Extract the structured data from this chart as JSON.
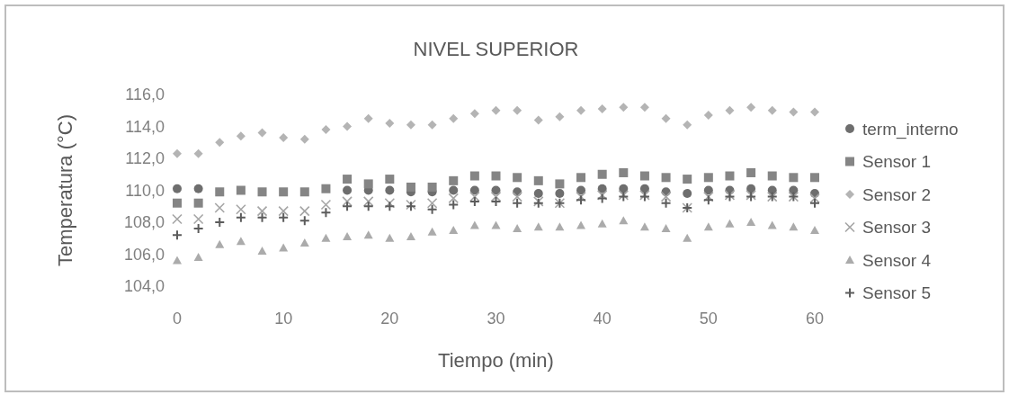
{
  "chart_data": {
    "type": "scatter",
    "title": "NIVEL SUPERIOR",
    "xlabel": "Tiempo (min)",
    "ylabel": "Temperatura (°C)",
    "x": [
      0,
      2,
      4,
      6,
      8,
      10,
      12,
      14,
      16,
      18,
      20,
      22,
      24,
      26,
      28,
      30,
      32,
      34,
      36,
      38,
      40,
      42,
      44,
      46,
      48,
      50,
      52,
      54,
      56,
      58,
      60
    ],
    "xlim": [
      0,
      60
    ],
    "xticks": [
      0,
      10,
      20,
      30,
      40,
      50,
      60
    ],
    "ylim": [
      104,
      116
    ],
    "yticks": [
      {
        "value": 104,
        "label": "104,0"
      },
      {
        "value": 106,
        "label": "106,0"
      },
      {
        "value": 108,
        "label": "108,0"
      },
      {
        "value": 110,
        "label": "110,0"
      },
      {
        "value": 112,
        "label": "112,0"
      },
      {
        "value": 114,
        "label": "114,0"
      },
      {
        "value": 116,
        "label": "116,0"
      }
    ],
    "grid": false,
    "legend": "right",
    "series": [
      {
        "name": "term_interno",
        "color": "#6e6e6e",
        "marker": "circle",
        "values": [
          110.1,
          110.1,
          null,
          null,
          null,
          null,
          null,
          null,
          110.0,
          110.0,
          110.0,
          109.9,
          109.9,
          110.0,
          110.0,
          110.0,
          109.9,
          109.8,
          109.8,
          110.0,
          110.1,
          110.1,
          110.1,
          109.9,
          109.8,
          110.0,
          110.0,
          110.1,
          110.0,
          110.0,
          109.8
        ]
      },
      {
        "name": "Sensor 1",
        "color": "#858585",
        "marker": "square",
        "values": [
          109.2,
          109.2,
          109.9,
          110.0,
          109.9,
          109.9,
          109.9,
          110.1,
          110.7,
          110.4,
          110.7,
          110.2,
          110.2,
          110.6,
          110.9,
          110.9,
          110.8,
          110.6,
          110.4,
          110.8,
          111.0,
          111.1,
          110.9,
          110.8,
          110.7,
          110.8,
          110.9,
          111.1,
          110.9,
          110.8,
          110.8
        ]
      },
      {
        "name": "Sensor 2",
        "color": "#b4b4b4",
        "marker": "diamond",
        "values": [
          112.3,
          112.3,
          113.0,
          113.4,
          113.6,
          113.3,
          113.2,
          113.8,
          114.0,
          114.5,
          114.2,
          114.1,
          114.1,
          114.5,
          114.8,
          115.0,
          115.0,
          114.4,
          114.6,
          115.0,
          115.1,
          115.2,
          115.2,
          114.5,
          114.1,
          114.7,
          115.0,
          115.2,
          115.0,
          114.9,
          114.9
        ]
      },
      {
        "name": "Sensor 3",
        "color": "#a5a5a5",
        "marker": "x",
        "values": [
          108.2,
          108.2,
          108.9,
          108.8,
          108.7,
          108.7,
          108.7,
          109.1,
          109.3,
          109.3,
          109.2,
          109.1,
          109.2,
          109.5,
          109.6,
          109.6,
          109.6,
          109.3,
          109.2,
          109.6,
          109.7,
          109.7,
          109.7,
          109.6,
          108.9,
          109.6,
          109.7,
          109.7,
          109.6,
          109.6,
          109.5
        ]
      },
      {
        "name": "Sensor 4",
        "color": "#ababab",
        "marker": "triangle",
        "values": [
          105.6,
          105.8,
          106.6,
          106.8,
          106.2,
          106.4,
          106.7,
          107.0,
          107.1,
          107.2,
          107.0,
          107.1,
          107.4,
          107.5,
          107.8,
          107.8,
          107.6,
          107.7,
          107.7,
          107.8,
          107.9,
          108.1,
          107.7,
          107.6,
          107.0,
          107.7,
          107.9,
          108.0,
          107.8,
          107.7,
          107.5
        ]
      },
      {
        "name": "Sensor 5",
        "color": "#5c5c5c",
        "marker": "cross",
        "values": [
          107.2,
          107.6,
          108.0,
          108.3,
          108.3,
          108.3,
          108.1,
          108.6,
          109.0,
          109.0,
          109.0,
          109.0,
          108.8,
          109.1,
          109.3,
          109.3,
          109.2,
          109.2,
          109.2,
          109.4,
          109.5,
          109.6,
          109.6,
          109.2,
          108.9,
          109.4,
          109.6,
          109.6,
          109.6,
          109.6,
          109.2
        ]
      }
    ]
  }
}
